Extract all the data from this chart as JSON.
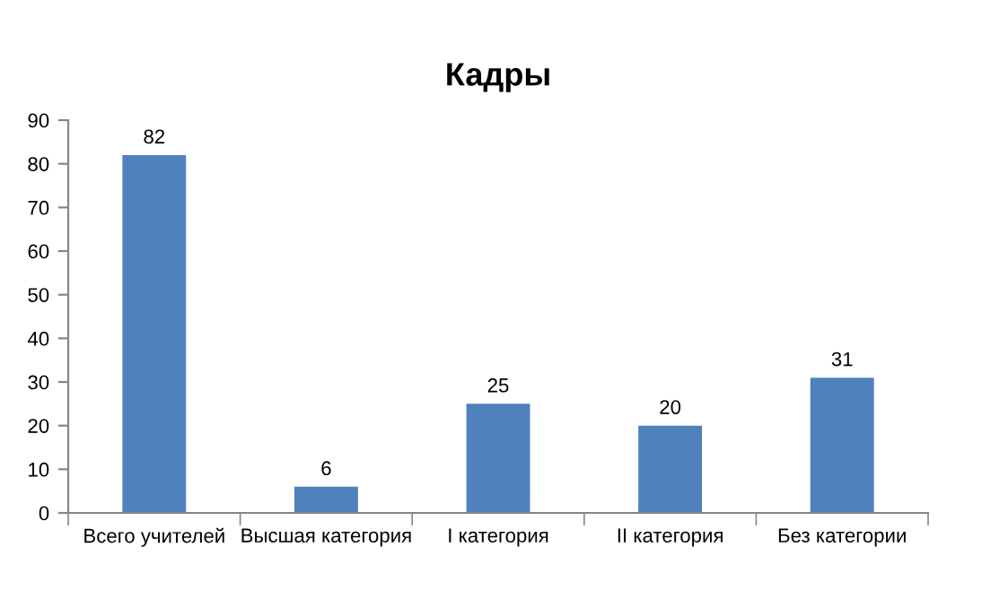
{
  "chart_data": {
    "type": "bar",
    "title": "Кадры",
    "categories": [
      "Всего учителей",
      "Высшая категория",
      "I категория",
      "II категория",
      "Без категории"
    ],
    "values": [
      82,
      6,
      25,
      20,
      31
    ],
    "color": "#4f81bd",
    "ylim": [
      0,
      90
    ],
    "yticks": [
      0,
      10,
      20,
      30,
      40,
      50,
      60,
      70,
      80,
      90
    ],
    "data_labels": true,
    "grid": false,
    "legend": false
  }
}
